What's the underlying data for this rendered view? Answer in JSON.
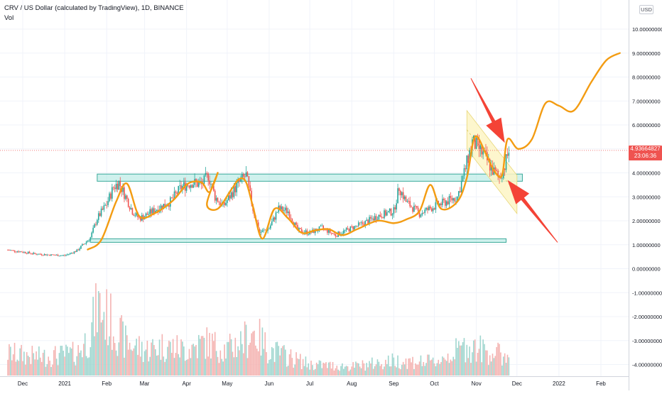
{
  "header": {
    "title": "CRV / US Dollar (calculated by TradingView), 1D, BINANCE",
    "indicator": "Vol",
    "currency": "USD"
  },
  "price_tag": {
    "value": "4.93664827",
    "countdown": "23:06:36"
  },
  "colors": {
    "up": "#26a69a",
    "down": "#ef5350",
    "up_volume": "#9fd6cf",
    "down_volume": "#f4b3b1",
    "projection": "#f39c12",
    "zone_fill": "#a8e6df",
    "zone_border": "#3aa99a",
    "channel_fill": "#fdf5c4",
    "arrow": "#f44336",
    "grid": "#f0f3fa"
  },
  "chart_data": {
    "type": "candlestick",
    "title": "CRV / US Dollar (calculated by TradingView), 1D, BINANCE",
    "xlabel": "",
    "ylabel": "",
    "ylim": [
      -4.2,
      10.4
    ],
    "grid": true,
    "y_ticks": [
      "10.00000000",
      "9.00000000",
      "8.00000000",
      "7.00000000",
      "6.00000000",
      "5.00000000",
      "4.00000000",
      "3.00000000",
      "2.00000000",
      "1.00000000",
      "0.00000000",
      "-1.00000000",
      "-2.00000000",
      "-3.00000000",
      "-4.00000000"
    ],
    "x_ticks": [
      {
        "label": "Dec",
        "date": "2020-12-01"
      },
      {
        "label": "2021",
        "date": "2021-01-01"
      },
      {
        "label": "Feb",
        "date": "2021-02-01"
      },
      {
        "label": "Mar",
        "date": "2021-03-01"
      },
      {
        "label": "Apr",
        "date": "2021-04-01"
      },
      {
        "label": "May",
        "date": "2021-05-01"
      },
      {
        "label": "Jun",
        "date": "2021-06-01"
      },
      {
        "label": "Jul",
        "date": "2021-07-01"
      },
      {
        "label": "Aug",
        "date": "2021-08-01"
      },
      {
        "label": "Sep",
        "date": "2021-09-01"
      },
      {
        "label": "Oct",
        "date": "2021-10-01"
      },
      {
        "label": "Nov",
        "date": "2021-11-01"
      },
      {
        "label": "Dec",
        "date": "2021-12-01"
      },
      {
        "label": "2022",
        "date": "2022-01-01"
      },
      {
        "label": "Feb",
        "date": "2022-02-01"
      }
    ],
    "last_price": 4.93664827,
    "price_path": [
      [
        "2020-11-20",
        0.78
      ],
      [
        "2020-12-01",
        0.7
      ],
      [
        "2020-12-10",
        0.62
      ],
      [
        "2020-12-20",
        0.58
      ],
      [
        "2021-01-01",
        0.55
      ],
      [
        "2021-01-10",
        0.75
      ],
      [
        "2021-01-20",
        1.3
      ],
      [
        "2021-01-25",
        2.1
      ],
      [
        "2021-02-01",
        2.7
      ],
      [
        "2021-02-06",
        3.4
      ],
      [
        "2021-02-10",
        3.6
      ],
      [
        "2021-02-15",
        3.0
      ],
      [
        "2021-02-20",
        2.4
      ],
      [
        "2021-02-25",
        2.1
      ],
      [
        "2021-03-01",
        2.2
      ],
      [
        "2021-03-10",
        2.5
      ],
      [
        "2021-03-20",
        2.8
      ],
      [
        "2021-03-28",
        3.4
      ],
      [
        "2021-04-05",
        3.6
      ],
      [
        "2021-04-12",
        3.5
      ],
      [
        "2021-04-17",
        3.9
      ],
      [
        "2021-04-22",
        3.0
      ],
      [
        "2021-04-28",
        2.6
      ],
      [
        "2021-05-05",
        3.2
      ],
      [
        "2021-05-10",
        3.6
      ],
      [
        "2021-05-15",
        3.9
      ],
      [
        "2021-05-20",
        2.5
      ],
      [
        "2021-05-25",
        1.5
      ],
      [
        "2021-06-01",
        1.7
      ],
      [
        "2021-06-08",
        2.5
      ],
      [
        "2021-06-15",
        2.4
      ],
      [
        "2021-06-22",
        1.6
      ],
      [
        "2021-07-01",
        1.5
      ],
      [
        "2021-07-10",
        1.7
      ],
      [
        "2021-07-20",
        1.4
      ],
      [
        "2021-08-01",
        1.7
      ],
      [
        "2021-08-10",
        1.9
      ],
      [
        "2021-08-20",
        2.2
      ],
      [
        "2021-09-01",
        2.4
      ],
      [
        "2021-09-05",
        3.4
      ],
      [
        "2021-09-10",
        2.8
      ],
      [
        "2021-09-20",
        2.3
      ],
      [
        "2021-10-01",
        2.6
      ],
      [
        "2021-10-10",
        2.8
      ],
      [
        "2021-10-18",
        3.0
      ],
      [
        "2021-10-24",
        4.2
      ],
      [
        "2021-10-29",
        5.3
      ],
      [
        "2021-11-03",
        5.0
      ],
      [
        "2021-11-08",
        4.6
      ],
      [
        "2021-11-13",
        4.1
      ],
      [
        "2021-11-18",
        3.8
      ],
      [
        "2021-11-22",
        4.3
      ],
      [
        "2021-11-25",
        4.94
      ]
    ],
    "volume_level": [
      [
        "2020-11-20",
        0.3
      ],
      [
        "2020-12-15",
        0.25
      ],
      [
        "2021-01-10",
        0.3
      ],
      [
        "2021-01-20",
        0.55
      ],
      [
        "2021-01-25",
        0.95
      ],
      [
        "2021-02-05",
        0.7
      ],
      [
        "2021-02-15",
        0.45
      ],
      [
        "2021-03-01",
        0.35
      ],
      [
        "2021-03-15",
        0.4
      ],
      [
        "2021-04-01",
        0.35
      ],
      [
        "2021-04-15",
        0.45
      ],
      [
        "2021-05-01",
        0.35
      ],
      [
        "2021-05-15",
        0.5
      ],
      [
        "2021-05-20",
        0.6
      ],
      [
        "2021-06-01",
        0.35
      ],
      [
        "2021-07-01",
        0.15
      ],
      [
        "2021-08-01",
        0.12
      ],
      [
        "2021-09-01",
        0.2
      ],
      [
        "2021-10-01",
        0.18
      ],
      [
        "2021-10-25",
        0.4
      ],
      [
        "2021-11-05",
        0.35
      ],
      [
        "2021-11-25",
        0.25
      ]
    ],
    "drawings": {
      "support_zone_upper": {
        "from": "2021-01-25",
        "to": "2021-12-05",
        "low": 3.65,
        "high": 3.95
      },
      "support_zone_lower": {
        "from": "2021-01-20",
        "to": "2021-11-23",
        "low": 1.1,
        "high": 1.25
      },
      "falling_channel": {
        "upper": [
          [
            "2021-10-25",
            6.6
          ],
          [
            "2021-12-01",
            3.9
          ]
        ],
        "lower": [
          [
            "2021-10-25",
            5.0
          ],
          [
            "2021-12-01",
            2.3
          ]
        ]
      },
      "price_projection": [
        [
          "2021-01-18",
          0.8
        ],
        [
          "2021-01-28",
          1.2
        ],
        [
          "2021-02-08",
          2.8
        ],
        [
          "2021-02-16",
          3.55
        ],
        [
          "2021-02-25",
          2.2
        ],
        [
          "2021-03-08",
          2.3
        ],
        [
          "2021-03-22",
          2.85
        ],
        [
          "2021-04-02",
          3.55
        ],
        [
          "2021-04-12",
          3.6
        ],
        [
          "2021-04-18",
          3.2
        ],
        [
          "2021-04-24",
          4.0
        ],
        [
          "2021-04-16",
          2.7
        ],
        [
          "2021-04-24",
          2.5
        ],
        [
          "2021-05-04",
          3.3
        ],
        [
          "2021-05-10",
          3.75
        ],
        [
          "2021-05-15",
          3.6
        ],
        [
          "2021-05-20",
          2.6
        ],
        [
          "2021-05-27",
          1.25
        ],
        [
          "2021-06-05",
          2.5
        ],
        [
          "2021-06-15",
          2.1
        ],
        [
          "2021-06-25",
          1.5
        ],
        [
          "2021-07-05",
          1.6
        ],
        [
          "2021-07-15",
          1.65
        ],
        [
          "2021-07-25",
          1.4
        ],
        [
          "2021-08-05",
          1.65
        ],
        [
          "2021-08-20",
          2.0
        ],
        [
          "2021-09-01",
          1.9
        ],
        [
          "2021-09-10",
          2.05
        ],
        [
          "2021-09-20",
          2.4
        ],
        [
          "2021-09-28",
          3.5
        ],
        [
          "2021-10-06",
          2.5
        ],
        [
          "2021-10-18",
          2.8
        ],
        [
          "2021-10-25",
          3.8
        ],
        [
          "2021-10-31",
          5.5
        ],
        [
          "2021-11-08",
          4.8
        ],
        [
          "2021-11-14",
          4.1
        ],
        [
          "2021-11-20",
          3.9
        ],
        [
          "2021-11-24",
          5.4
        ],
        [
          "2021-12-02",
          5.0
        ],
        [
          "2021-12-12",
          5.4
        ],
        [
          "2021-12-22",
          6.9
        ],
        [
          "2022-01-01",
          6.8
        ],
        [
          "2022-01-12",
          6.6
        ],
        [
          "2022-01-25",
          7.8
        ],
        [
          "2022-02-05",
          8.7
        ],
        [
          "2022-02-15",
          9.0
        ]
      ],
      "arrows": [
        {
          "from": [
            "2021-10-28",
            7.95
          ],
          "to": [
            "2021-11-22",
            5.25
          ]
        },
        {
          "from": [
            "2021-12-31",
            1.1
          ],
          "to": [
            "2021-11-24",
            3.7
          ]
        }
      ]
    }
  }
}
